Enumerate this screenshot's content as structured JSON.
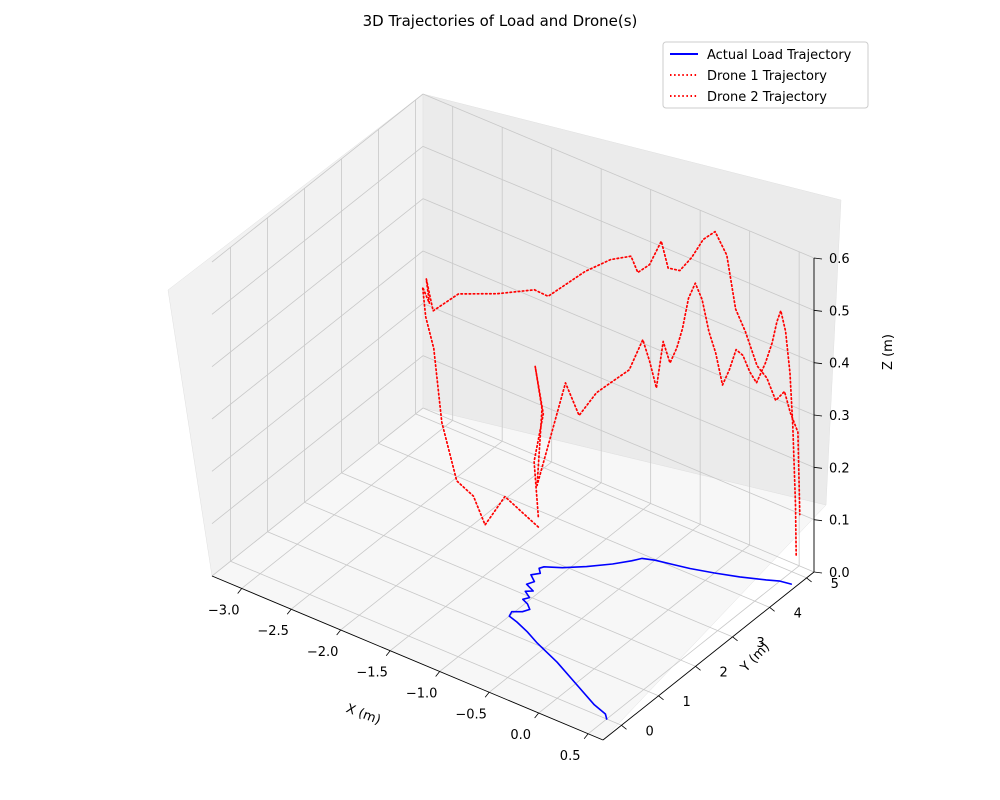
{
  "chart_data": {
    "type": "line",
    "projection": "3d",
    "title": "3D Trajectories of Load and Drone(s)",
    "xlabel": "X (m)",
    "ylabel": "Y (m)",
    "zlabel": "Z (m)",
    "xlim": [
      -3.3,
      0.65
    ],
    "ylim": [
      -0.5,
      5.2
    ],
    "zlim": [
      0,
      0.6
    ],
    "xticks": [
      "−3.0",
      "−2.5",
      "−2.0",
      "−1.5",
      "−1.0",
      "−0.5",
      "0.0",
      "0.5"
    ],
    "yticks": [
      "0",
      "1",
      "2",
      "3",
      "4",
      "5"
    ],
    "zticks": [
      "0.0",
      "0.1",
      "0.2",
      "0.3",
      "0.4",
      "0.5",
      "0.6"
    ],
    "grid": true,
    "legend_position": "top-right",
    "series": [
      {
        "name": "Actual Load Trajectory",
        "color": "#0000ff",
        "style": "solid",
        "points": [
          [
            0.5,
            0.0,
            0.0
          ],
          [
            0.45,
            0.1,
            0.0
          ],
          [
            0.3,
            0.2,
            0.0
          ],
          [
            0.0,
            0.5,
            0.0
          ],
          [
            -0.3,
            0.8,
            0.0
          ],
          [
            -0.6,
            1.05,
            0.0
          ],
          [
            -0.75,
            1.2,
            0.0
          ],
          [
            -0.9,
            1.32,
            0.0
          ],
          [
            -1.0,
            1.38,
            0.0
          ],
          [
            -1.02,
            1.5,
            0.0
          ],
          [
            -0.95,
            1.6,
            0.0
          ],
          [
            -0.92,
            1.72,
            0.0
          ],
          [
            -0.98,
            1.82,
            0.0
          ],
          [
            -1.05,
            1.88,
            0.0
          ],
          [
            -1.02,
            1.98,
            0.0
          ],
          [
            -1.1,
            2.08,
            0.0
          ],
          [
            -1.05,
            2.16,
            0.0
          ],
          [
            -1.15,
            2.25,
            0.0
          ],
          [
            -1.12,
            2.38,
            0.0
          ],
          [
            -1.2,
            2.5,
            0.0
          ],
          [
            -1.15,
            2.62,
            0.0
          ],
          [
            -1.2,
            2.72,
            0.0
          ],
          [
            -1.18,
            2.8,
            0.0
          ],
          [
            -1.05,
            2.95,
            0.0
          ],
          [
            -0.9,
            3.2,
            0.0
          ],
          [
            -0.75,
            3.5,
            0.0
          ],
          [
            -0.65,
            3.75,
            0.0
          ],
          [
            -0.6,
            3.9,
            0.0
          ],
          [
            -0.5,
            3.98,
            0.0
          ],
          [
            -0.35,
            4.05,
            0.0
          ],
          [
            -0.2,
            4.12,
            0.0
          ],
          [
            0.0,
            4.25,
            0.0
          ],
          [
            0.2,
            4.4,
            0.0
          ],
          [
            0.4,
            4.58,
            0.0
          ],
          [
            0.5,
            4.68,
            0.0
          ],
          [
            0.6,
            4.72,
            0.0
          ]
        ]
      },
      {
        "name": "Drone 1 Trajectory",
        "color": "#ff0000",
        "style": "dotted",
        "points": [
          [
            -1.2,
            2.7,
            0.1
          ],
          [
            -1.25,
            2.72,
            0.2
          ],
          [
            -1.15,
            2.7,
            0.3
          ],
          [
            -1.25,
            2.75,
            0.38
          ],
          [
            -1.2,
            2.8,
            0.3
          ],
          [
            -1.25,
            2.8,
            0.15
          ],
          [
            -1.0,
            2.9,
            0.36
          ],
          [
            -0.9,
            3.0,
            0.3
          ],
          [
            -0.8,
            3.2,
            0.34
          ],
          [
            -0.7,
            3.4,
            0.36
          ],
          [
            -0.6,
            3.55,
            0.38
          ],
          [
            -0.5,
            3.65,
            0.44
          ],
          [
            -0.45,
            3.7,
            0.4
          ],
          [
            -0.4,
            3.75,
            0.35
          ],
          [
            -0.35,
            3.8,
            0.44
          ],
          [
            -0.3,
            3.85,
            0.4
          ],
          [
            -0.25,
            3.9,
            0.43
          ],
          [
            -0.2,
            3.92,
            0.47
          ],
          [
            -0.15,
            3.95,
            0.53
          ],
          [
            -0.1,
            4.0,
            0.56
          ],
          [
            -0.05,
            4.05,
            0.53
          ],
          [
            0.0,
            4.1,
            0.47
          ],
          [
            0.05,
            4.15,
            0.43
          ],
          [
            0.1,
            4.2,
            0.37
          ],
          [
            0.15,
            4.25,
            0.4
          ],
          [
            0.2,
            4.3,
            0.44
          ],
          [
            0.25,
            4.35,
            0.43
          ],
          [
            0.3,
            4.4,
            0.4
          ],
          [
            0.35,
            4.45,
            0.38
          ],
          [
            0.42,
            4.5,
            0.42
          ],
          [
            0.47,
            4.55,
            0.46
          ],
          [
            0.5,
            4.6,
            0.5
          ],
          [
            0.52,
            4.65,
            0.52
          ],
          [
            0.55,
            4.7,
            0.48
          ],
          [
            0.58,
            4.74,
            0.4
          ],
          [
            0.6,
            4.76,
            0.3
          ],
          [
            0.62,
            4.78,
            0.15
          ],
          [
            0.62,
            4.8,
            0.05
          ]
        ]
      },
      {
        "name": "Drone 2 Trajectory",
        "color": "#ff0000",
        "style": "dotted",
        "points": [
          [
            -1.2,
            2.7,
            0.08
          ],
          [
            -1.5,
            2.6,
            0.12
          ],
          [
            -1.7,
            2.6,
            0.05
          ],
          [
            -1.8,
            2.55,
            0.1
          ],
          [
            -1.95,
            2.5,
            0.12
          ],
          [
            -2.1,
            2.5,
            0.22
          ],
          [
            -2.2,
            2.55,
            0.35
          ],
          [
            -2.3,
            2.6,
            0.4
          ],
          [
            -2.35,
            2.65,
            0.45
          ],
          [
            -2.3,
            2.7,
            0.42
          ],
          [
            -2.35,
            2.75,
            0.46
          ],
          [
            -2.3,
            2.8,
            0.4
          ],
          [
            -2.1,
            2.95,
            0.44
          ],
          [
            -1.8,
            3.2,
            0.45
          ],
          [
            -1.5,
            3.4,
            0.47
          ],
          [
            -1.4,
            3.5,
            0.46
          ],
          [
            -1.1,
            3.7,
            0.52
          ],
          [
            -0.9,
            3.85,
            0.55
          ],
          [
            -0.75,
            4.0,
            0.56
          ],
          [
            -0.7,
            4.05,
            0.53
          ],
          [
            -0.6,
            4.1,
            0.55
          ],
          [
            -0.5,
            4.15,
            0.6
          ],
          [
            -0.45,
            4.2,
            0.55
          ],
          [
            -0.35,
            4.25,
            0.55
          ],
          [
            -0.25,
            4.3,
            0.58
          ],
          [
            -0.15,
            4.35,
            0.62
          ],
          [
            -0.05,
            4.4,
            0.64
          ],
          [
            0.05,
            4.45,
            0.6
          ],
          [
            0.12,
            4.5,
            0.5
          ],
          [
            0.2,
            4.55,
            0.46
          ],
          [
            0.3,
            4.6,
            0.4
          ],
          [
            0.38,
            4.65,
            0.38
          ],
          [
            0.45,
            4.7,
            0.34
          ],
          [
            0.52,
            4.75,
            0.36
          ],
          [
            0.56,
            4.8,
            0.32
          ],
          [
            0.58,
            4.85,
            0.3
          ],
          [
            0.6,
            4.9,
            0.28
          ],
          [
            0.6,
            4.95,
            0.12
          ]
        ]
      }
    ]
  }
}
